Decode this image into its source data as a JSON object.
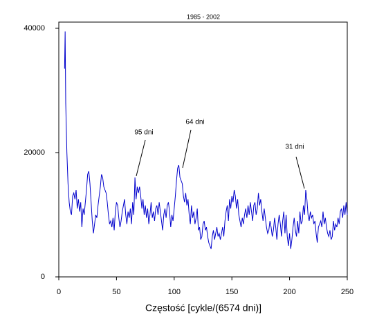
{
  "chart_data": {
    "type": "line",
    "title": "1985 - 2002",
    "x_label": "Częstość [cykle/(6574 dni)]",
    "xlim": [
      0,
      250
    ],
    "xticks": [
      0,
      50,
      100,
      150,
      200,
      250
    ],
    "ylim": [
      0,
      41000
    ],
    "yticks": [
      0,
      20000,
      40000
    ],
    "annotations": [
      "95 dni",
      "64 dni",
      "31 dni"
    ],
    "series": [
      {
        "color": "#0000cc",
        "x": [
          5,
          5.5,
          6,
          7,
          8,
          9,
          10,
          11,
          12,
          13,
          14,
          15,
          16,
          17,
          18,
          19,
          20,
          21,
          22,
          23,
          24,
          25,
          26,
          27,
          28,
          29,
          30,
          31,
          32,
          33,
          34,
          35,
          36,
          37,
          38,
          39,
          40,
          41,
          42,
          43,
          44,
          45,
          46,
          47,
          48,
          49,
          50,
          51,
          52,
          53,
          54,
          55,
          56,
          57,
          58,
          59,
          60,
          61,
          62,
          63,
          64,
          65,
          66,
          67,
          68,
          69,
          70,
          71,
          72,
          73,
          74,
          75,
          76,
          77,
          78,
          79,
          80,
          81,
          82,
          83,
          84,
          85,
          86,
          87,
          88,
          89,
          90,
          91,
          92,
          93,
          94,
          95,
          96,
          97,
          98,
          99,
          100,
          101,
          102,
          103,
          104,
          105,
          106,
          107,
          108,
          109,
          110,
          111,
          112,
          113,
          114,
          115,
          116,
          117,
          118,
          119,
          120,
          121,
          122,
          123,
          124,
          125,
          126,
          127,
          128,
          129,
          130,
          131,
          132,
          133,
          134,
          135,
          136,
          137,
          138,
          139,
          140,
          141,
          142,
          143,
          144,
          145,
          146,
          147,
          148,
          149,
          150,
          151,
          152,
          153,
          154,
          155,
          156,
          157,
          158,
          159,
          160,
          161,
          162,
          163,
          164,
          165,
          166,
          167,
          168,
          169,
          170,
          171,
          172,
          173,
          174,
          175,
          176,
          177,
          178,
          179,
          180,
          181,
          182,
          183,
          184,
          185,
          186,
          187,
          188,
          189,
          190,
          191,
          192,
          193,
          194,
          195,
          196,
          197,
          198,
          199,
          200,
          201,
          202,
          203,
          204,
          205,
          206,
          207,
          208,
          209,
          210,
          211,
          212,
          213,
          214,
          215,
          216,
          217,
          218,
          219,
          220,
          221,
          222,
          223,
          224,
          225,
          226,
          227,
          228,
          229,
          230,
          231,
          232,
          233,
          234,
          235,
          236,
          237,
          238,
          239,
          240,
          241,
          242,
          243,
          244,
          245,
          246,
          247,
          248,
          249,
          250
        ],
        "values": [
          33500,
          39500,
          28000,
          20000,
          15000,
          12000,
          10500,
          10000,
          13000,
          13500,
          12500,
          14000,
          11000,
          12500,
          10500,
          12000,
          8000,
          11000,
          10000,
          12000,
          14000,
          16500,
          17000,
          15000,
          12000,
          9000,
          7000,
          8500,
          10000,
          9500,
          11500,
          13000,
          14500,
          16500,
          16000,
          14500,
          14000,
          13500,
          12000,
          10000,
          8500,
          9000,
          8000,
          9500,
          7500,
          10500,
          12000,
          11500,
          9500,
          8000,
          9000,
          10500,
          11500,
          12500,
          10000,
          8500,
          10500,
          9500,
          11000,
          8500,
          12000,
          10000,
          16000,
          12500,
          14500,
          13500,
          14500,
          13000,
          11000,
          12500,
          10000,
          11500,
          9500,
          11000,
          8500,
          10000,
          12000,
          9500,
          10500,
          9000,
          11000,
          11500,
          10000,
          12000,
          10500,
          9000,
          7500,
          10000,
          11000,
          9500,
          11500,
          12000,
          10500,
          8000,
          10000,
          9000,
          11000,
          13000,
          15500,
          17500,
          18000,
          16000,
          15500,
          15000,
          13000,
          12000,
          13500,
          11500,
          12500,
          10000,
          8500,
          11500,
          9500,
          10500,
          8500,
          9500,
          11000,
          7500,
          8000,
          6000,
          6500,
          8500,
          9000,
          7500,
          8000,
          6500,
          5500,
          5000,
          4500,
          6500,
          7500,
          6000,
          7000,
          8000,
          6500,
          7000,
          6000,
          7000,
          8000,
          6500,
          9000,
          10500,
          11500,
          9000,
          12500,
          11000,
          13000,
          12000,
          14000,
          13000,
          11000,
          12500,
          10000,
          9000,
          8000,
          9500,
          8500,
          10000,
          11000,
          9500,
          11500,
          10000,
          12000,
          10500,
          9000,
          11500,
          12000,
          10000,
          11000,
          13500,
          11500,
          12500,
          10500,
          9000,
          11000,
          9500,
          8000,
          7000,
          7500,
          9000,
          8000,
          6500,
          7500,
          9500,
          8000,
          6000,
          8500,
          10000,
          8500,
          6500,
          9000,
          10500,
          7000,
          10000,
          6500,
          5000,
          7000,
          4500,
          6000,
          8000,
          9500,
          7500,
          6500,
          9000,
          7000,
          10500,
          8500,
          9000,
          11500,
          10000,
          14000,
          12500,
          10000,
          9000,
          10500,
          9500,
          10000,
          8500,
          9000,
          7000,
          5500,
          8000,
          8500,
          9000,
          8000,
          10500,
          8500,
          9500,
          8000,
          7000,
          6500,
          7500,
          6000,
          6500,
          9000,
          7500,
          8500,
          8000,
          9500,
          8500,
          10500,
          11000,
          9500,
          11500,
          10000,
          12000,
          10000
        ]
      }
    ]
  }
}
